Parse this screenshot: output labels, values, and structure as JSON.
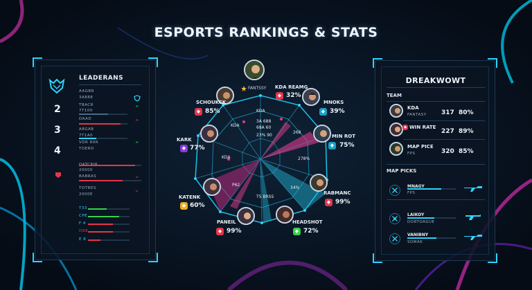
{
  "title": "ESPORTS RANKINGS & STATS",
  "colors": {
    "accent": "#2fd4ff",
    "magenta": "#e0308e",
    "green": "#35d44a",
    "red": "#e8344c"
  },
  "leaderboard": {
    "title": "LEADERANS",
    "ranks": [
      {
        "number": "2",
        "lines": [
          "AAGBR",
          "3A888",
          "TBACR",
          "7T100"
        ],
        "chevron": "up",
        "bar": "0.6",
        "bar_color": "#4a6a86"
      },
      {
        "number": "3",
        "lines": [
          "DAAD",
          "AUTE00",
          "A8GAB",
          "7T1A0"
        ],
        "chevron": "up",
        "bar": "0.85",
        "bar_color": "#e8344c"
      },
      {
        "number": "4",
        "lines": [
          "VDR R0R",
          "TOERO"
        ],
        "chevron": "up",
        "bar": "0.35",
        "bar_color": "#2fd4ff"
      }
    ],
    "lower_rows": [
      {
        "lines": [
          "OATCRIR",
          "20000"
        ],
        "bar": "0.9",
        "bar_color": "#e8344c"
      },
      {
        "lines": [
          "BABRAS",
          "TOEE0"
        ],
        "bar": "0.7",
        "bar_color": "#e8344c"
      },
      {
        "lines": [
          "TOTRES",
          "2000E"
        ],
        "bar": "0.55",
        "bar_color": "#e8344c"
      }
    ],
    "mini_rows": [
      {
        "label": "T33",
        "bar": "0.45",
        "bar_color": "#35d44a"
      },
      {
        "label": "CPE",
        "bar": "0.75",
        "bar_color": "#35d44a"
      },
      {
        "label": "F 4",
        "bar": "0.6",
        "bar_color": "#e8344c"
      },
      {
        "label": "DNE",
        "bar": "0.6",
        "bar_color": "#e8344c"
      },
      {
        "label": "E 8",
        "bar": "0.3",
        "bar_color": "#e8344c"
      }
    ]
  },
  "radar": {
    "top_player": {
      "name": "FANTSSY"
    },
    "players": [
      {
        "name": "KDA REAMG",
        "stat": "32%"
      },
      {
        "name": "MNOKS",
        "stat": "39%"
      },
      {
        "name": "MIN ROT",
        "stat": "75%"
      },
      {
        "name": "RABMANC",
        "stat": "99%"
      },
      {
        "name": "HEADSHOT",
        "stat": "72%"
      },
      {
        "name": "PANEIL",
        "stat": "99%"
      },
      {
        "name": "KATENK",
        "stat": "60%"
      },
      {
        "name": "KARK",
        "stat": "77%"
      },
      {
        "name": "SCHOUKCK",
        "stat": "85%"
      }
    ],
    "labels": {
      "kda_top": "KDA",
      "lines": [
        "3A 688",
        "68A 60",
        "23% 90"
      ],
      "kda_left": "KDA",
      "kda_left2": "KDA",
      "r268": "268",
      "r278": "278%",
      "r34": "34%",
      "p62": "P62",
      "bottom": "T5 BRSS"
    }
  },
  "right_panel": {
    "title": "DREAKWOWT",
    "team_head": "TEAM",
    "team_rows": [
      {
        "label": "KDA",
        "sub": "FANTASY",
        "v1": "317",
        "v2": "80%"
      },
      {
        "label": "WIN RATE",
        "sub": "",
        "v1": "227",
        "v2": "89%"
      },
      {
        "label": "MAP PICE",
        "sub": "FPS",
        "v1": "320",
        "v2": "85%"
      }
    ],
    "map_head": "MAP PICKS",
    "map_rows": [
      {
        "label": "MNAGY",
        "sub": "FPS",
        "fill": "0.7"
      },
      {
        "label": "LAIKOY",
        "sub": "DORTOAGUE",
        "fill": "0.55"
      },
      {
        "label": "VANIBNY",
        "sub": "SDMAK",
        "fill": "0.6"
      }
    ]
  }
}
